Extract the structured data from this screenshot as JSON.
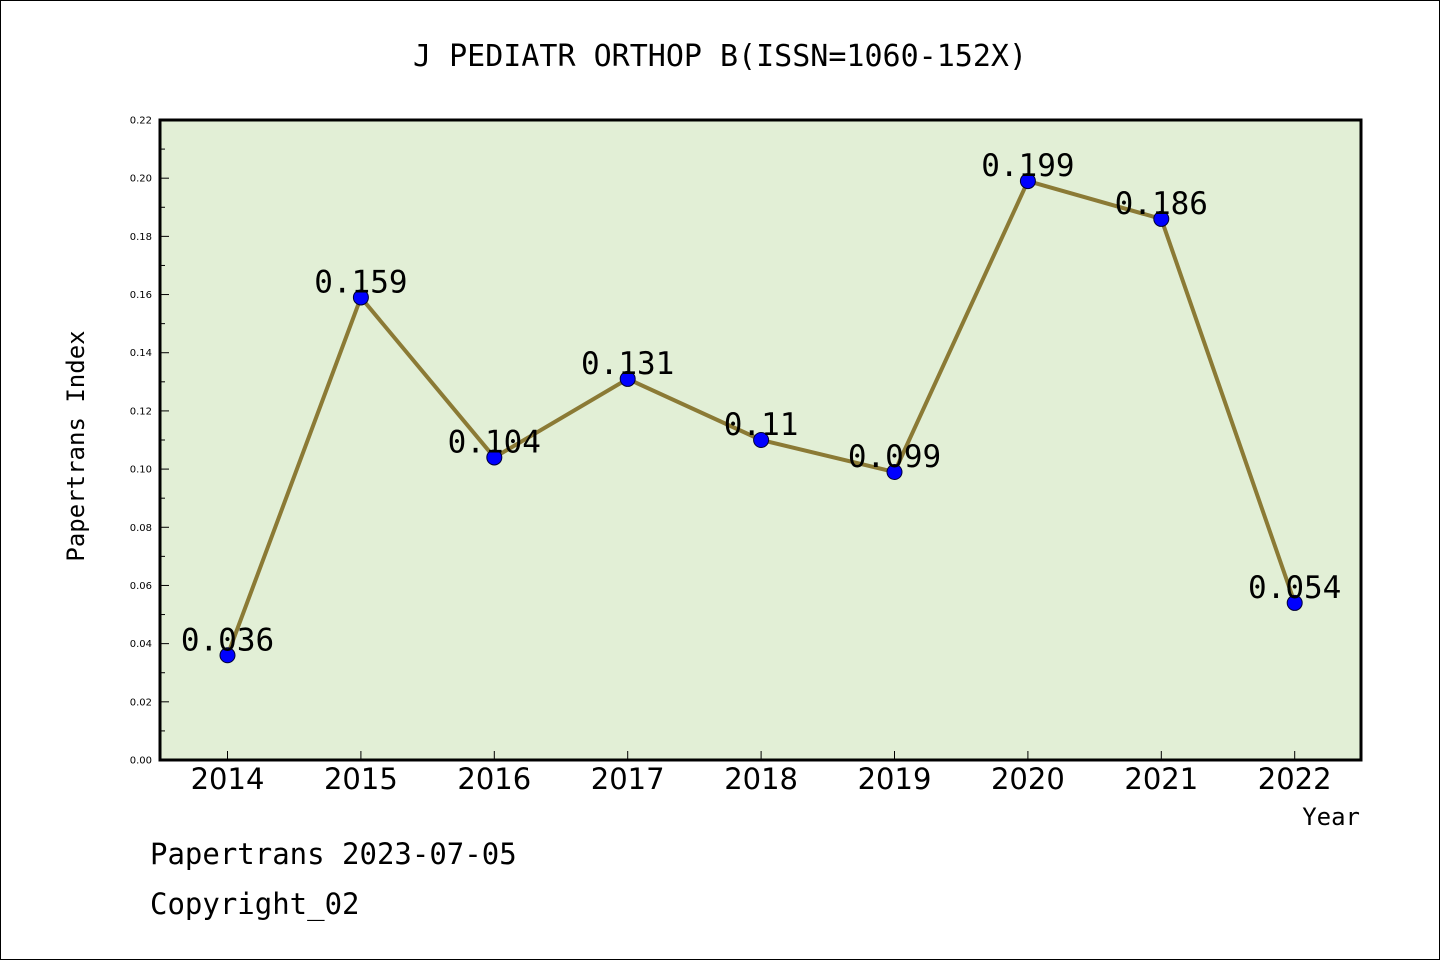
{
  "chart_data": {
    "type": "line",
    "title": "J PEDIATR ORTHOP B(ISSN=1060-152X)",
    "xlabel": "Year",
    "ylabel": "Papertrans Index",
    "categories": [
      "2014",
      "2015",
      "2016",
      "2017",
      "2018",
      "2019",
      "2020",
      "2021",
      "2022"
    ],
    "values": [
      0.036,
      0.159,
      0.104,
      0.131,
      0.11,
      0.099,
      0.199,
      0.186,
      0.054
    ],
    "data_labels": [
      "0.036",
      "0.159",
      "0.104",
      "0.131",
      "0.11",
      "0.099",
      "0.199",
      "0.186",
      "0.054"
    ],
    "ylim": [
      0,
      0.22
    ],
    "yticks": [
      "0.00",
      "0.02",
      "0.04",
      "0.06",
      "0.08",
      "0.10",
      "0.12",
      "0.14",
      "0.16",
      "0.18",
      "0.20",
      "0.22"
    ],
    "grid": false,
    "colors": {
      "plot_background": "#e2efd6",
      "line": "#8b7a35",
      "marker": "#0000ff"
    }
  },
  "footer": {
    "source": "Papertrans 2023-07-05",
    "copyright": "Copyright_02"
  }
}
